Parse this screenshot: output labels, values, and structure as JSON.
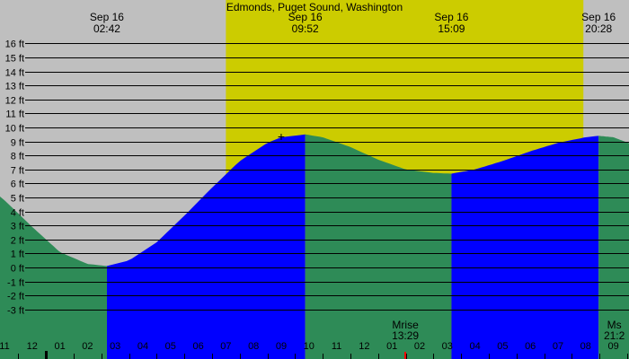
{
  "chart_data": {
    "type": "area",
    "title": "Edmonds, Puget Sound, Washington",
    "y_unit": "ft",
    "ylim": [
      -4,
      16.6
    ],
    "y_ticks": [
      16,
      15,
      14,
      13,
      12,
      11,
      10,
      9,
      8,
      7,
      6,
      5,
      4,
      3,
      2,
      1,
      0,
      -1,
      -2,
      -3
    ],
    "y_tick_labels": [
      "16 ft",
      "15 ft",
      "14 ft",
      "13 ft",
      "12 ft",
      "11 ft",
      "10 ft",
      "9 ft",
      "8 ft",
      "7 ft",
      "6 ft",
      "5 ft",
      "4 ft",
      "3 ft",
      "2 ft",
      "1 ft",
      "0 ft",
      "-1 ft",
      "-2 ft",
      "-3 ft"
    ],
    "grid": true,
    "hour_labels": [
      "11",
      "12",
      "01",
      "02",
      "03",
      "04",
      "05",
      "06",
      "07",
      "08",
      "09",
      "10",
      "11",
      "12",
      "01",
      "02",
      "03",
      "04",
      "05",
      "06",
      "07",
      "08",
      "09"
    ],
    "extremes": [
      {
        "date": "Sep 16",
        "time": "02:42",
        "type": "low",
        "height_ft": 0.1
      },
      {
        "date": "Sep 16",
        "time": "09:52",
        "type": "high",
        "height_ft": 9.5
      },
      {
        "date": "Sep 16",
        "time": "15:09",
        "type": "low",
        "height_ft": 6.7
      },
      {
        "date": "Sep 16",
        "time": "20:28",
        "type": "high",
        "height_ft": 9.4
      }
    ],
    "series": [
      {
        "x_hours": [
          22.2,
          23.0,
          24.0,
          25.0,
          26.0,
          26.7,
          27.5,
          28.5,
          29.5,
          30.5,
          31.5,
          32.5,
          33.0,
          33.87,
          34.5,
          35.5,
          36.5,
          37.5,
          38.5,
          39.15,
          40.0,
          41.0,
          42.0,
          43.0,
          44.0,
          44.47,
          45.0,
          45.2
        ],
        "y_ft": [
          6.1,
          4.8,
          2.9,
          1.1,
          0.25,
          0.1,
          0.5,
          1.8,
          3.7,
          5.7,
          7.6,
          8.9,
          9.3,
          9.5,
          9.3,
          8.6,
          7.7,
          7.0,
          6.75,
          6.7,
          7.0,
          7.6,
          8.3,
          8.9,
          9.3,
          9.4,
          9.3,
          9.15
        ]
      }
    ],
    "colors": {
      "night": "#bfbfbf",
      "day": "#cccc00",
      "rising_tide": "#0000ff",
      "falling_tide": "#2e8b57",
      "moonrise_marker": "#ff0000",
      "midnight_marker": "#000000"
    },
    "daylight": {
      "start": "07:00",
      "end": "19:55"
    },
    "moon_events": [
      {
        "label": "Mrise",
        "time": "13:29"
      },
      {
        "label": "Ms",
        "time": "21:2"
      }
    ],
    "markers": [
      {
        "type": "current-time",
        "symbol": "+",
        "time": "09:00",
        "height_ft": 9.35
      }
    ]
  }
}
